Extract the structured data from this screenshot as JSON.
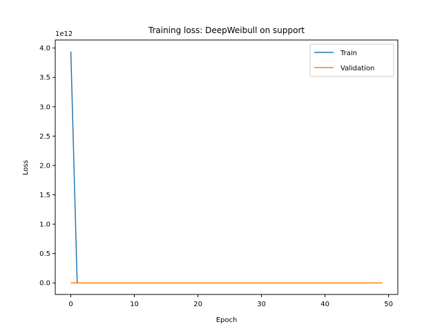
{
  "chart_data": {
    "type": "line",
    "title": "Training loss: DeepWeibull on support",
    "xlabel": "Epoch",
    "ylabel": "Loss",
    "y_offset_text": "1e12",
    "xlim": [
      -2.45,
      51.45
    ],
    "ylim": [
      -0.197,
      4.137
    ],
    "x_ticks": [
      0,
      10,
      20,
      30,
      40,
      50
    ],
    "x_tick_labels": [
      "0",
      "10",
      "20",
      "30",
      "40",
      "50"
    ],
    "y_ticks": [
      0.0,
      0.5,
      1.0,
      1.5,
      2.0,
      2.5,
      3.0,
      3.5,
      4.0
    ],
    "y_tick_labels": [
      "0.0",
      "0.5",
      "1.0",
      "1.5",
      "2.0",
      "2.5",
      "3.0",
      "3.5",
      "4.0"
    ],
    "grid": false,
    "legend_position": "top-right",
    "x_range": [
      0,
      49
    ],
    "series": [
      {
        "name": "Train",
        "color": "#1f77b4",
        "first_value": 3.94,
        "rest_value": 0.0
      },
      {
        "name": "Validation",
        "color": "#ff7f0e",
        "first_value": 0.002,
        "rest_value": 0.0
      }
    ]
  }
}
